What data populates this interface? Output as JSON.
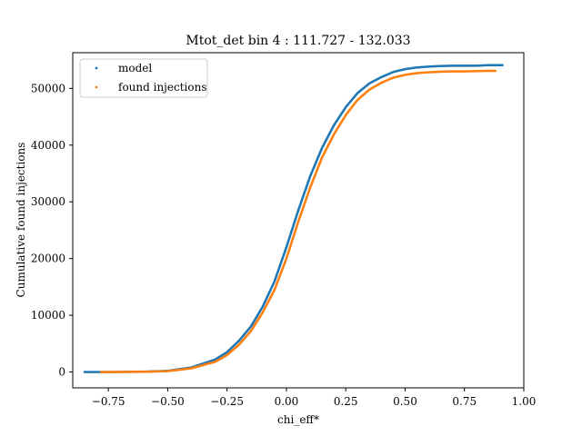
{
  "chart_data": {
    "type": "scatter",
    "title": "Mtot_det bin 4 : 111.727 - 132.033",
    "xlabel": "chi_eff*",
    "ylabel": "Cumulative found injections",
    "xlim": [
      -0.9,
      1.0
    ],
    "ylim": [
      -2800,
      56300
    ],
    "xticks": [
      -0.75,
      -0.5,
      -0.25,
      0.0,
      0.25,
      0.5,
      0.75,
      1.0
    ],
    "xtick_labels": [
      "−0.75",
      "−0.50",
      "−0.25",
      "0.00",
      "0.25",
      "0.50",
      "0.75",
      "1.00"
    ],
    "yticks": [
      0,
      10000,
      20000,
      30000,
      40000,
      50000
    ],
    "ytick_labels": [
      "0",
      "10000",
      "20000",
      "30000",
      "40000",
      "50000"
    ],
    "grid": false,
    "legend_position": "top-left",
    "series": [
      {
        "name": "model",
        "color": "#1f77b4",
        "x": [
          -0.85,
          -0.82,
          -0.77,
          -0.72,
          -0.7,
          -0.6,
          -0.5,
          -0.4,
          -0.3,
          -0.25,
          -0.2,
          -0.15,
          -0.1,
          -0.05,
          0.0,
          0.05,
          0.1,
          0.15,
          0.2,
          0.25,
          0.3,
          0.35,
          0.4,
          0.45,
          0.5,
          0.55,
          0.6,
          0.65,
          0.7,
          0.75,
          0.8,
          0.85,
          0.88,
          0.91
        ],
        "y": [
          0,
          0,
          0,
          0,
          20,
          50,
          200,
          800,
          2200,
          3500,
          5500,
          8000,
          11500,
          16000,
          22000,
          28500,
          34500,
          39500,
          43500,
          46700,
          49200,
          50900,
          52000,
          52900,
          53400,
          53700,
          53850,
          53950,
          54000,
          54000,
          54000,
          54100,
          54100,
          54100
        ]
      },
      {
        "name": "found injections",
        "color": "#ff7f0e",
        "x": [
          -0.78,
          -0.77,
          -0.7,
          -0.6,
          -0.5,
          -0.4,
          -0.3,
          -0.25,
          -0.2,
          -0.15,
          -0.1,
          -0.05,
          0.0,
          0.05,
          0.1,
          0.15,
          0.2,
          0.25,
          0.3,
          0.35,
          0.4,
          0.45,
          0.5,
          0.55,
          0.6,
          0.65,
          0.7,
          0.75,
          0.8,
          0.85,
          0.88
        ],
        "y": [
          0,
          0,
          10,
          40,
          150,
          650,
          1800,
          3000,
          4800,
          7200,
          10500,
          14500,
          20000,
          26500,
          32500,
          37800,
          41900,
          45300,
          48000,
          49800,
          51000,
          51900,
          52400,
          52700,
          52850,
          52950,
          53000,
          53000,
          53050,
          53100,
          53100
        ]
      }
    ]
  }
}
